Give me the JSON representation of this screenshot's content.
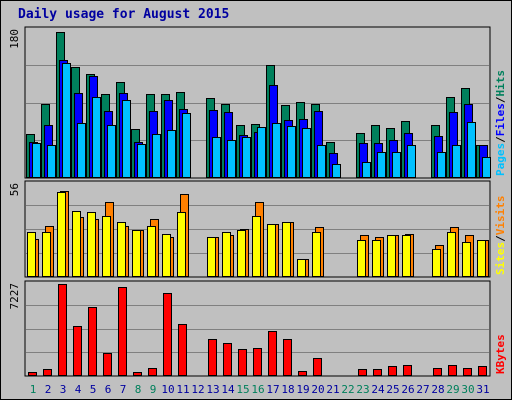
{
  "title": "Daily usage for August 2015",
  "colors": {
    "hits": "#00805c",
    "files": "#0000ff",
    "pages": "#00c0ff",
    "visits": "#ff8000",
    "sites": "#ffff00",
    "kbytes": "#ff0000",
    "weekday_label": "#0000a0",
    "weekend_label": "#00805c"
  },
  "chart_data": [
    {
      "type": "bar",
      "panel": "hits-files-pages",
      "legend": [
        "Pages",
        "Files",
        "Hits"
      ],
      "legend_separator": "/",
      "ymax_label": "180",
      "ylim": [
        0,
        180
      ],
      "categories": [
        "1",
        "2",
        "3",
        "4",
        "5",
        "6",
        "7",
        "8",
        "9",
        "10",
        "11",
        "12",
        "13",
        "14",
        "15",
        "16",
        "17",
        "18",
        "19",
        "20",
        "21",
        "22",
        "23",
        "24",
        "25",
        "26",
        "27",
        "28",
        "29",
        "30",
        "31"
      ],
      "series": [
        {
          "name": "Hits",
          "values": [
            54,
            90,
            178,
            135,
            127,
            102,
            117,
            60,
            102,
            102,
            104,
            0,
            97,
            90,
            64,
            66,
            138,
            89,
            93,
            90,
            44,
            0,
            55,
            64,
            61,
            69,
            0,
            64,
            99,
            110,
            40
          ]
        },
        {
          "name": "Files",
          "values": [
            44,
            64,
            143,
            103,
            124,
            82,
            103,
            44,
            82,
            95,
            84,
            0,
            83,
            80,
            52,
            56,
            113,
            71,
            72,
            82,
            31,
            0,
            43,
            42,
            46,
            55,
            0,
            51,
            80,
            90,
            40
          ]
        },
        {
          "name": "Pages",
          "values": [
            43,
            40,
            140,
            67,
            98,
            64,
            95,
            41,
            54,
            58,
            79,
            0,
            50,
            46,
            50,
            62,
            67,
            63,
            61,
            40,
            17,
            0,
            20,
            32,
            32,
            40,
            0,
            32,
            40,
            68,
            26
          ]
        }
      ]
    },
    {
      "type": "bar",
      "panel": "sites-visits",
      "legend": [
        "Sites",
        "Visits"
      ],
      "legend_separator": "/",
      "ymax_label": "56",
      "ylim": [
        0,
        56
      ],
      "categories": [
        "1",
        "2",
        "3",
        "4",
        "5",
        "6",
        "7",
        "8",
        "9",
        "10",
        "11",
        "12",
        "13",
        "14",
        "15",
        "16",
        "17",
        "18",
        "19",
        "20",
        "21",
        "22",
        "23",
        "24",
        "25",
        "26",
        "27",
        "28",
        "29",
        "30",
        "31"
      ],
      "series": [
        {
          "name": "Visits",
          "values": [
            23,
            31,
            52,
            36,
            35,
            45,
            31,
            28,
            35,
            24,
            50,
            0,
            24,
            25,
            29,
            45,
            32,
            33,
            11,
            30,
            0,
            0,
            25,
            24,
            25,
            26,
            0,
            19,
            30,
            25,
            22
          ]
        },
        {
          "name": "Sites",
          "values": [
            27,
            27,
            51,
            40,
            39,
            37,
            33,
            28,
            31,
            26,
            39,
            0,
            24,
            27,
            28,
            37,
            32,
            33,
            11,
            27,
            0,
            0,
            22,
            22,
            25,
            25,
            0,
            17,
            27,
            21,
            22
          ]
        }
      ]
    },
    {
      "type": "bar",
      "panel": "kbytes",
      "legend": [
        "KBytes"
      ],
      "ymax_label": "7227",
      "ylim": [
        0,
        7227
      ],
      "categories": [
        "1",
        "2",
        "3",
        "4",
        "5",
        "6",
        "7",
        "8",
        "9",
        "10",
        "11",
        "12",
        "13",
        "14",
        "15",
        "16",
        "17",
        "18",
        "19",
        "20",
        "21",
        "22",
        "23",
        "24",
        "25",
        "26",
        "27",
        "28",
        "29",
        "30",
        "31"
      ],
      "series": [
        {
          "name": "KBytes",
          "values": [
            300,
            520,
            7227,
            3900,
            5450,
            1800,
            6960,
            350,
            620,
            6500,
            4050,
            0,
            2900,
            2600,
            2100,
            2200,
            3550,
            2900,
            400,
            1400,
            0,
            0,
            550,
            520,
            780,
            880,
            0,
            600,
            900,
            660,
            750
          ]
        }
      ]
    }
  ],
  "weekend_days": [
    1,
    8,
    9,
    15,
    16,
    22,
    23,
    29,
    30
  ]
}
